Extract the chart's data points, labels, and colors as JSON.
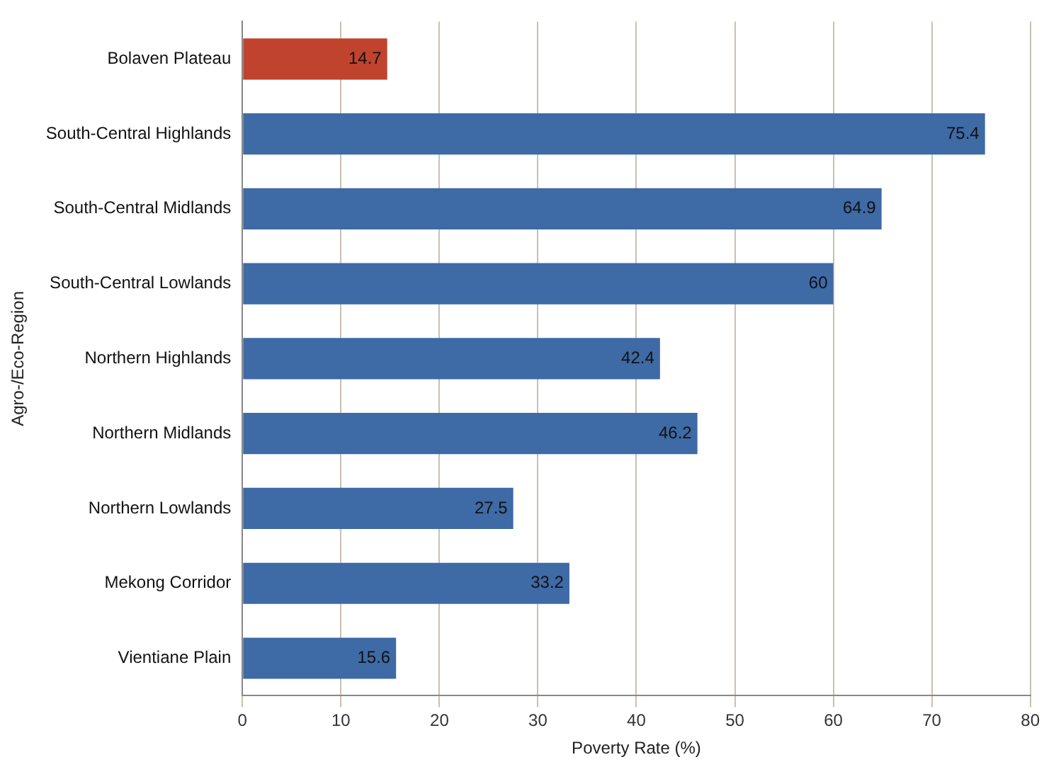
{
  "chart_data": {
    "type": "bar",
    "orientation": "horizontal",
    "xlabel": "Poverty Rate (%)",
    "ylabel": "Agro-/Eco-Region",
    "categories": [
      "Bolaven Plateau",
      "South-Central Highlands",
      "South-Central Midlands",
      "South-Central Lowlands",
      "Northern Highlands",
      "Northern Midlands",
      "Northern Lowlands",
      "Mekong Corridor",
      "Vientiane Plain"
    ],
    "values": [
      14.7,
      75.4,
      64.9,
      60,
      42.4,
      46.2,
      27.5,
      33.2,
      15.6
    ],
    "colors": [
      "#c0432e",
      "#3e6aa6",
      "#3e6aa6",
      "#3e6aa6",
      "#3e6aa6",
      "#3e6aa6",
      "#3e6aa6",
      "#3e6aa6",
      "#3e6aa6"
    ],
    "xlim": [
      0,
      80
    ],
    "xticks": [
      0,
      10,
      20,
      30,
      40,
      50,
      60,
      70,
      80
    ],
    "grid": "x",
    "legend": false,
    "data_labels": true
  }
}
